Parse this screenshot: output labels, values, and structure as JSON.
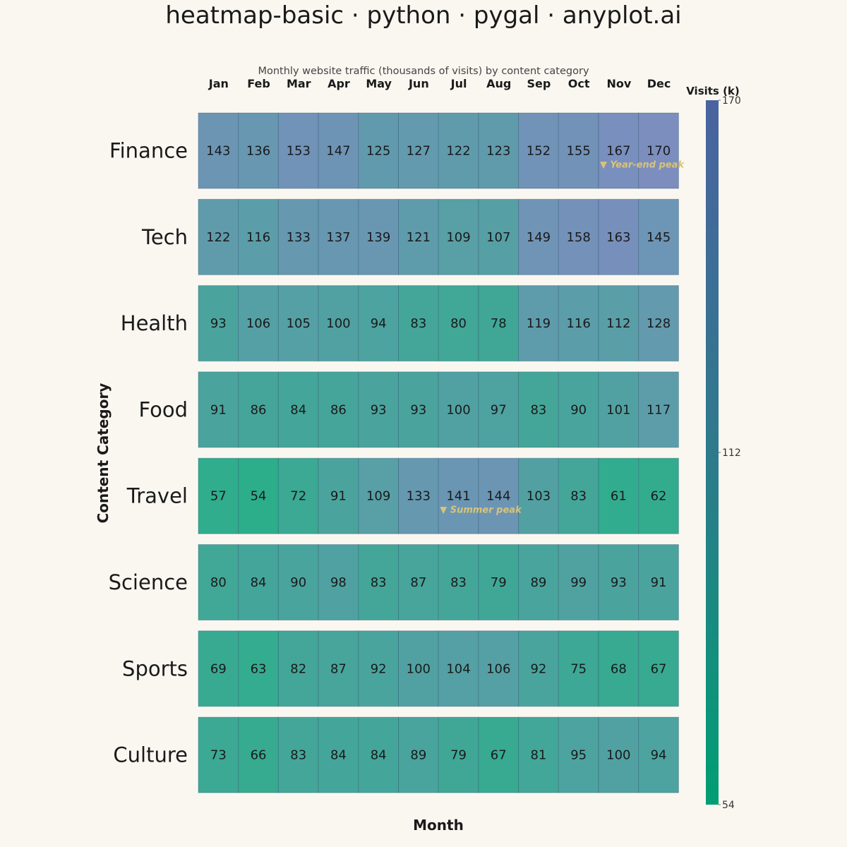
{
  "title": "heatmap-basic · python · pygal · anyplot.ai",
  "chart_data": {
    "type": "heatmap",
    "subtitle": "Monthly website traffic (thousands of visits) by content category",
    "xlabel": "Month",
    "ylabel": "Content Category",
    "columns": [
      "Jan",
      "Feb",
      "Mar",
      "Apr",
      "May",
      "Jun",
      "Jul",
      "Aug",
      "Sep",
      "Oct",
      "Nov",
      "Dec"
    ],
    "rows": [
      "Finance",
      "Tech",
      "Health",
      "Food",
      "Travel",
      "Science",
      "Sports",
      "Culture"
    ],
    "values": [
      [
        143,
        136,
        153,
        147,
        125,
        127,
        122,
        123,
        152,
        155,
        167,
        170
      ],
      [
        122,
        116,
        133,
        137,
        139,
        121,
        109,
        107,
        149,
        158,
        163,
        145
      ],
      [
        93,
        106,
        105,
        100,
        94,
        83,
        80,
        78,
        119,
        116,
        112,
        128
      ],
      [
        91,
        86,
        84,
        86,
        93,
        93,
        100,
        97,
        83,
        90,
        101,
        117
      ],
      [
        57,
        54,
        72,
        91,
        109,
        133,
        141,
        144,
        103,
        83,
        61,
        62
      ],
      [
        80,
        84,
        90,
        98,
        83,
        87,
        83,
        79,
        89,
        99,
        93,
        91
      ],
      [
        69,
        63,
        82,
        87,
        92,
        100,
        104,
        106,
        92,
        75,
        68,
        67
      ],
      [
        73,
        66,
        83,
        84,
        84,
        89,
        79,
        67,
        81,
        95,
        100,
        94
      ]
    ],
    "colorbar": {
      "title": "Visits (k)",
      "min": 54,
      "max": 170,
      "ticks": [
        170,
        112,
        54
      ],
      "color_low": "#009E73",
      "color_mid": "#2E7A8C",
      "color_high": "#4A63A0"
    },
    "cell_colors": {
      "low": "#2DAE8A",
      "mid": "#5A9EA8",
      "high": "#7B8EBE"
    },
    "annotations": [
      {
        "text": "▼ Year-end peak",
        "row": "Finance",
        "column": "Nov"
      },
      {
        "text": "▼ Summer peak",
        "row": "Travel",
        "column": "Jul"
      }
    ],
    "annotation_color": "#D9C37A"
  }
}
